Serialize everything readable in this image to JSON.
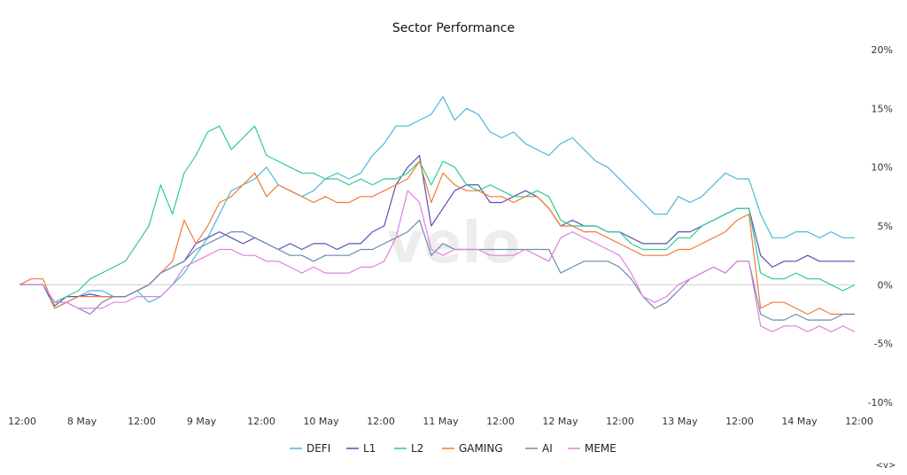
{
  "chart_data": {
    "type": "line",
    "title": "Sector Performance",
    "watermark": "velo",
    "nav_label": "<v>",
    "y_axis": {
      "position": "right",
      "ylim": [
        -10,
        20
      ],
      "unit": "%",
      "ticks": [
        20,
        15,
        10,
        5,
        0,
        -5,
        -10
      ],
      "tick_labels": [
        "20%",
        "15%",
        "10%",
        "5%",
        "0%",
        "-5%",
        "-10%"
      ]
    },
    "x_axis": {
      "tick_labels": [
        "12:00",
        "8 May",
        "12:00",
        "9 May",
        "12:00",
        "10 May",
        "12:00",
        "11 May",
        "12:00",
        "12 May",
        "12:00",
        "13 May",
        "12:00",
        "14 May",
        "12:00"
      ]
    },
    "zero_line": true,
    "grid": false,
    "legend_position": "bottom",
    "series": [
      {
        "name": "DEFI",
        "color": "#4ab8d8",
        "values": [
          0.0,
          0.0,
          0.0,
          -2.0,
          -1.5,
          -1.0,
          -0.5,
          -0.5,
          -1.0,
          -1.0,
          -0.5,
          -1.5,
          -1.0,
          0.0,
          1.0,
          2.5,
          4.0,
          6.0,
          8.0,
          8.5,
          9.0,
          10.0,
          8.5,
          8.0,
          7.5,
          8.0,
          9.0,
          9.5,
          9.0,
          9.5,
          11.0,
          12.0,
          13.5,
          13.5,
          14.0,
          14.5,
          16.0,
          14.0,
          15.0,
          14.5,
          13.0,
          12.5,
          13.0,
          12.0,
          11.5,
          11.0,
          12.0,
          12.5,
          11.5,
          10.5,
          10.0,
          9.0,
          8.0,
          7.0,
          6.0,
          6.0,
          7.5,
          7.0,
          7.5,
          8.5,
          9.5,
          9.0,
          9.0,
          6.0,
          4.0,
          4.0,
          4.5,
          4.5,
          4.0,
          4.5,
          4.0,
          4.0
        ]
      },
      {
        "name": "L1",
        "color": "#5a4fb3",
        "values": [
          0.0,
          0.0,
          0.0,
          -1.8,
          -1.0,
          -1.0,
          -0.8,
          -1.0,
          -1.0,
          -1.0,
          -0.5,
          0.0,
          1.0,
          1.5,
          2.0,
          3.5,
          4.0,
          4.5,
          4.0,
          3.5,
          4.0,
          3.5,
          3.0,
          3.5,
          3.0,
          3.5,
          3.5,
          3.0,
          3.5,
          3.5,
          4.5,
          5.0,
          8.5,
          10.0,
          11.0,
          5.0,
          6.5,
          8.0,
          8.5,
          8.5,
          7.0,
          7.0,
          7.5,
          8.0,
          7.5,
          6.5,
          5.0,
          5.5,
          5.0,
          5.0,
          4.5,
          4.5,
          4.0,
          3.5,
          3.5,
          3.5,
          4.5,
          4.5,
          5.0,
          5.5,
          6.0,
          6.5,
          6.5,
          2.5,
          1.5,
          2.0,
          2.0,
          2.5,
          2.0,
          2.0,
          2.0,
          2.0
        ]
      },
      {
        "name": "L2",
        "color": "#2ecc8f",
        "values": [
          0.0,
          0.0,
          0.0,
          -1.5,
          -1.0,
          -0.5,
          0.5,
          1.0,
          1.5,
          2.0,
          3.5,
          5.0,
          8.5,
          6.0,
          9.5,
          11.0,
          13.0,
          13.5,
          11.5,
          12.5,
          13.5,
          11.0,
          10.5,
          10.0,
          9.5,
          9.5,
          9.0,
          9.0,
          8.5,
          9.0,
          8.5,
          9.0,
          9.0,
          9.5,
          10.5,
          8.5,
          10.5,
          10.0,
          8.5,
          8.0,
          8.5,
          8.0,
          7.5,
          7.5,
          8.0,
          7.5,
          5.5,
          5.0,
          5.0,
          5.0,
          4.5,
          4.5,
          3.5,
          3.0,
          3.0,
          3.0,
          4.0,
          4.0,
          5.0,
          5.5,
          6.0,
          6.5,
          6.5,
          1.0,
          0.5,
          0.5,
          1.0,
          0.5,
          0.5,
          0.0,
          -0.5,
          0.0
        ]
      },
      {
        "name": "GAMING",
        "color": "#f07a3a",
        "values": [
          0.0,
          0.5,
          0.5,
          -2.0,
          -1.5,
          -1.0,
          -1.0,
          -1.0,
          -1.0,
          -1.0,
          -0.5,
          0.0,
          1.0,
          2.0,
          5.5,
          3.5,
          5.0,
          7.0,
          7.5,
          8.5,
          9.5,
          7.5,
          8.5,
          8.0,
          7.5,
          7.0,
          7.5,
          7.0,
          7.0,
          7.5,
          7.5,
          8.0,
          8.5,
          9.0,
          10.5,
          7.0,
          9.5,
          8.5,
          8.0,
          8.0,
          7.5,
          7.5,
          7.0,
          7.5,
          7.5,
          6.5,
          5.0,
          5.0,
          4.5,
          4.5,
          4.0,
          3.5,
          3.0,
          2.5,
          2.5,
          2.5,
          3.0,
          3.0,
          3.5,
          4.0,
          4.5,
          5.5,
          6.0,
          -2.0,
          -1.5,
          -1.5,
          -2.0,
          -2.5,
          -2.0,
          -2.5,
          -2.5,
          -2.5
        ]
      },
      {
        "name": "AI",
        "color": "#6a8cab",
        "values": [
          0.0,
          0.0,
          0.0,
          -1.5,
          -1.5,
          -2.0,
          -2.5,
          -1.5,
          -1.0,
          -1.0,
          -0.5,
          0.0,
          1.0,
          1.5,
          2.0,
          3.0,
          3.5,
          4.0,
          4.5,
          4.5,
          4.0,
          3.5,
          3.0,
          2.5,
          2.5,
          2.0,
          2.5,
          2.5,
          2.5,
          3.0,
          3.0,
          3.5,
          4.0,
          4.5,
          5.5,
          2.5,
          3.5,
          3.0,
          3.0,
          3.0,
          3.0,
          3.0,
          3.0,
          3.0,
          3.0,
          3.0,
          1.0,
          1.5,
          2.0,
          2.0,
          2.0,
          1.5,
          0.5,
          -1.0,
          -2.0,
          -1.5,
          -0.5,
          0.5,
          1.0,
          1.5,
          1.0,
          2.0,
          2.0,
          -2.5,
          -3.0,
          -3.0,
          -2.5,
          -3.0,
          -3.0,
          -3.0,
          -2.5,
          -2.5
        ]
      },
      {
        "name": "MEME",
        "color": "#e080e0",
        "values": [
          0.0,
          0.0,
          0.0,
          -1.5,
          -1.5,
          -2.0,
          -2.0,
          -2.0,
          -1.5,
          -1.5,
          -1.0,
          -1.0,
          -1.0,
          0.0,
          1.5,
          2.0,
          2.5,
          3.0,
          3.0,
          2.5,
          2.5,
          2.0,
          2.0,
          1.5,
          1.0,
          1.5,
          1.0,
          1.0,
          1.0,
          1.5,
          1.5,
          2.0,
          4.0,
          8.0,
          7.0,
          3.0,
          2.5,
          3.0,
          3.0,
          3.0,
          2.5,
          2.5,
          2.5,
          3.0,
          2.5,
          2.0,
          4.0,
          4.5,
          4.0,
          3.5,
          3.0,
          2.5,
          1.0,
          -1.0,
          -1.5,
          -1.0,
          0.0,
          0.5,
          1.0,
          1.5,
          1.0,
          2.0,
          2.0,
          -3.5,
          -4.0,
          -3.5,
          -3.5,
          -4.0,
          -3.5,
          -4.0,
          -3.5,
          -4.0
        ]
      }
    ]
  }
}
